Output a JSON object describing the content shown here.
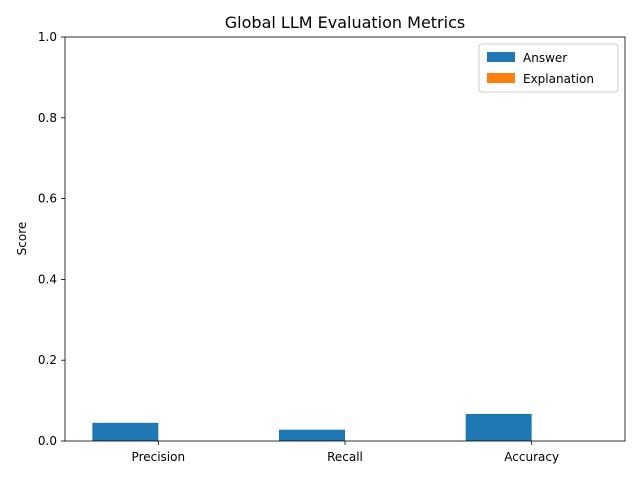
{
  "chart_data": {
    "type": "bar",
    "title": "Global LLM Evaluation Metrics",
    "xlabel": "",
    "ylabel": "Score",
    "categories": [
      "Precision",
      "Recall",
      "Accuracy"
    ],
    "ylim": [
      0,
      1.0
    ],
    "yticks": [
      "0.0",
      "0.2",
      "0.4",
      "0.6",
      "0.8",
      "1.0"
    ],
    "grid": false,
    "legend_position": "top-right",
    "series": [
      {
        "name": "Answer",
        "color": "#1f77b4",
        "values": [
          0.045,
          0.028,
          0.067
        ]
      },
      {
        "name": "Explanation",
        "color": "#ff7f0e",
        "values": [
          0.0,
          0.0,
          0.0
        ]
      }
    ]
  }
}
